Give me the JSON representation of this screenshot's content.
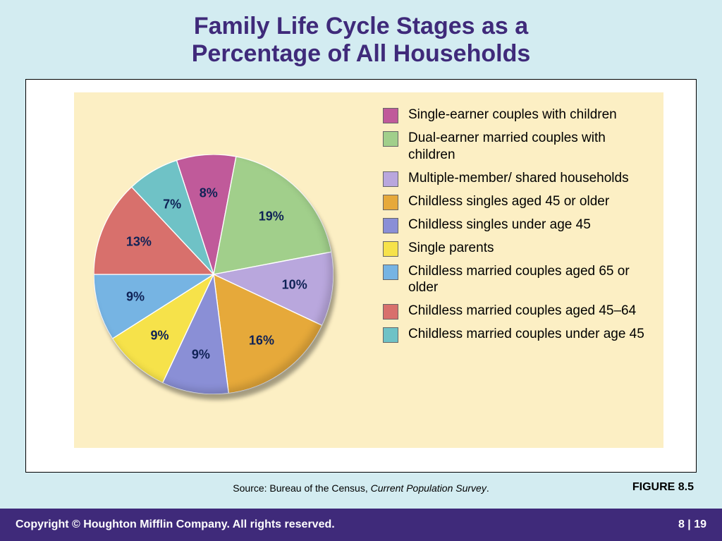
{
  "title_line1": "Family Life Cycle Stages as a",
  "title_line2": "Percentage of All Households",
  "chart": {
    "type": "pie",
    "start_angle_deg": -108,
    "background_panel": "#fcefc4",
    "frame_bg": "#ffffff",
    "page_bg": "#d3ecf1",
    "label_fontsize": 18,
    "label_color": "#0f2256",
    "slices": [
      {
        "label": "8%",
        "value": 8,
        "color": "#c05a9a"
      },
      {
        "label": "19%",
        "value": 19,
        "color": "#a1cf8b"
      },
      {
        "label": "10%",
        "value": 10,
        "color": "#b9a7dd"
      },
      {
        "label": "16%",
        "value": 16,
        "color": "#e6a93a"
      },
      {
        "label": "9%",
        "value": 9,
        "color": "#8a8fd6"
      },
      {
        "label": "9%",
        "value": 9,
        "color": "#f6e24a"
      },
      {
        "label": "9%",
        "value": 9,
        "color": "#76b4e3"
      },
      {
        "label": "13%",
        "value": 13,
        "color": "#d8706c"
      },
      {
        "label": "7%",
        "value": 7,
        "color": "#6fc2c6"
      }
    ],
    "legend": [
      {
        "color": "#c05a9a",
        "text": "Single-earner couples with children"
      },
      {
        "color": "#a1cf8b",
        "text": "Dual-earner married couples with children"
      },
      {
        "color": "#b9a7dd",
        "text": "Multiple-member/ shared households"
      },
      {
        "color": "#e6a93a",
        "text": "Childless singles aged 45 or older"
      },
      {
        "color": "#8a8fd6",
        "text": "Childless singles under age 45"
      },
      {
        "color": "#f6e24a",
        "text": "Single parents"
      },
      {
        "color": "#76b4e3",
        "text": "Childless married couples aged 65 or older"
      },
      {
        "color": "#d8706c",
        "text": "Childless married couples aged 45–64"
      },
      {
        "color": "#6fc2c6",
        "text": "Childless married couples under age 45"
      }
    ]
  },
  "source_prefix": "Source: Bureau of the Census, ",
  "source_ital": "Current Population Survey",
  "source_suffix": ".",
  "figure_label": "FIGURE 8.5",
  "footer_left": "Copyright © Houghton Mifflin Company. All rights reserved.",
  "footer_page_prefix": "8  |  ",
  "footer_page_num": "19"
}
